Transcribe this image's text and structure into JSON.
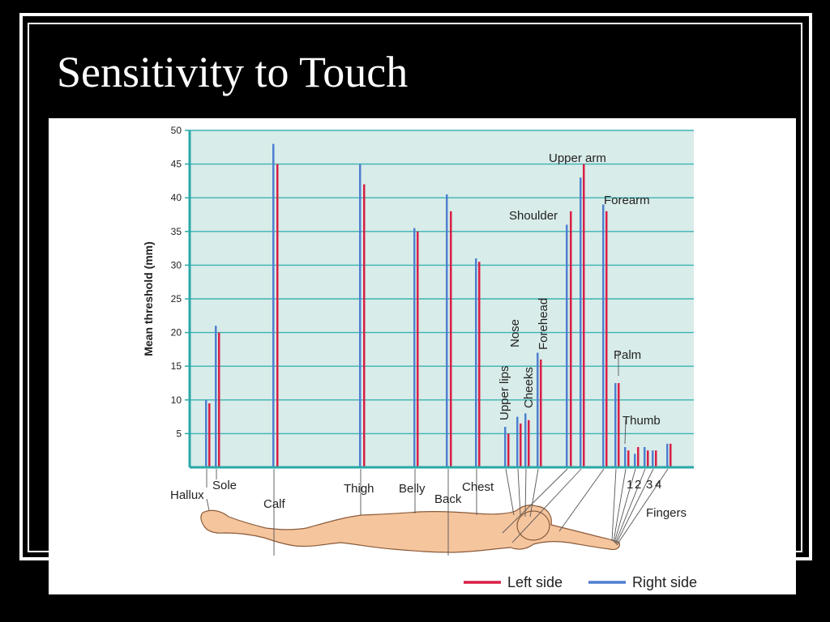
{
  "slide": {
    "title": "Sensitivity to Touch"
  },
  "chart_data": {
    "type": "bar",
    "ylabel": "Mean threshold (mm)",
    "ylim": [
      0,
      50
    ],
    "yticks": [
      5,
      10,
      15,
      20,
      25,
      30,
      35,
      40,
      45,
      50
    ],
    "grid": true,
    "legend_position": "bottom-right",
    "series": [
      {
        "name": "Left side",
        "color": "#d81f45"
      },
      {
        "name": "Right side",
        "color": "#4f7fd0"
      }
    ],
    "categories": [
      {
        "label": "Hallux",
        "left": 9.5,
        "right": 10
      },
      {
        "label": "Sole",
        "left": 20,
        "right": 21
      },
      {
        "label": "Calf",
        "left": 45,
        "right": 48
      },
      {
        "label": "Thigh",
        "left": 42,
        "right": 45
      },
      {
        "label": "Belly",
        "left": 35,
        "right": 35.5
      },
      {
        "label": "Back",
        "left": 38,
        "right": 40.5
      },
      {
        "label": "Chest",
        "left": 30.5,
        "right": 31
      },
      {
        "label": "Upper lips",
        "left": 5,
        "right": 6
      },
      {
        "label": "Nose",
        "left": 6.5,
        "right": 7.5
      },
      {
        "label": "Cheeks",
        "left": 7,
        "right": 8
      },
      {
        "label": "Forehead",
        "left": 16,
        "right": 17
      },
      {
        "label": "Shoulder",
        "left": 38,
        "right": 36
      },
      {
        "label": "Upper arm",
        "left": 45,
        "right": 43
      },
      {
        "label": "Forearm",
        "left": 38,
        "right": 39
      },
      {
        "label": "Palm",
        "left": 12.5,
        "right": 12.5
      },
      {
        "label": "Thumb",
        "left": 2.5,
        "right": 3
      },
      {
        "label": "1",
        "left": 3,
        "right": 2
      },
      {
        "label": "2",
        "left": 2.5,
        "right": 3
      },
      {
        "label": "3",
        "left": 2.5,
        "right": 2.5
      },
      {
        "label": "4",
        "left": 3.5,
        "right": 3.5
      }
    ],
    "annotations": {
      "fingers": "Fingers"
    }
  }
}
